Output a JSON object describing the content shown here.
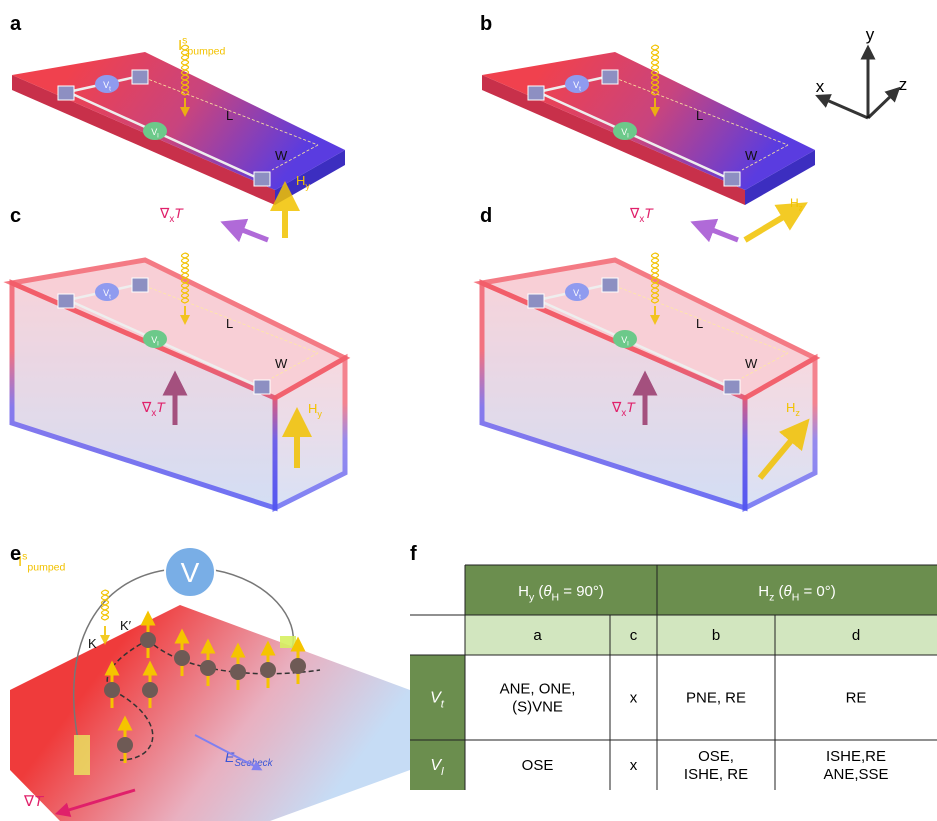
{
  "panel_labels": [
    "a",
    "b",
    "c",
    "d",
    "e",
    "f"
  ],
  "axes": [
    "x",
    "y",
    "z"
  ],
  "labels": {
    "pumped": [
      {
        "t": "I"
      },
      {
        "t": "s",
        "sup": true
      },
      {
        "t": "pumped",
        "sub": true
      }
    ],
    "L": [
      {
        "t": "L"
      }
    ],
    "W": [
      {
        "t": "W"
      }
    ],
    "Hy": [
      {
        "t": "H"
      },
      {
        "t": "y",
        "sub": true
      }
    ],
    "Hz": [
      {
        "t": "H"
      },
      {
        "t": "z",
        "sub": true
      }
    ],
    "gradx": [
      {
        "t": "∇"
      },
      {
        "t": "x",
        "sub": true
      },
      {
        "t": "T",
        "it": true
      }
    ],
    "Vt": [
      {
        "t": "V"
      },
      {
        "t": "t",
        "sub": true
      }
    ],
    "Vl": [
      {
        "t": "V"
      },
      {
        "t": "l",
        "sub": true
      }
    ],
    "K": [
      {
        "t": "K"
      }
    ],
    "Kp": [
      {
        "t": "K′"
      }
    ],
    "V": [
      {
        "t": "V"
      }
    ],
    "E": [
      {
        "t": "E",
        "it": true
      },
      {
        "t": "Seebeck",
        "sub": true,
        "it": true
      }
    ],
    "gradT": [
      {
        "t": "∇"
      },
      {
        "t": "T",
        "it": true
      }
    ]
  },
  "table": {
    "groups": [
      [
        {
          "t": "H"
        },
        {
          "t": "y",
          "sub": true
        },
        {
          "t": " ("
        },
        {
          "t": "θ",
          "it": true
        },
        {
          "t": "H",
          "sub": true
        },
        {
          "t": " = 90°)"
        }
      ],
      [
        {
          "t": "H"
        },
        {
          "t": "z",
          "sub": true
        },
        {
          "t": " ("
        },
        {
          "t": "θ",
          "it": true
        },
        {
          "t": "H",
          "sub": true
        },
        {
          "t": " = 0°)"
        }
      ]
    ],
    "columns": [
      "a",
      "c",
      "b",
      "d"
    ],
    "rows": [
      {
        "label": [
          {
            "t": "V",
            "it": true
          },
          {
            "t": "t",
            "sub": true,
            "it": true
          }
        ],
        "cells": [
          [
            "ANE, ONE,",
            "(S)VNE"
          ],
          [
            "x"
          ],
          [
            "PNE, RE"
          ],
          [
            "RE"
          ]
        ]
      },
      {
        "label": [
          {
            "t": "V",
            "it": true
          },
          {
            "t": "l",
            "sub": true,
            "it": true
          }
        ],
        "cells": [
          [
            "OSE"
          ],
          [
            "x"
          ],
          [
            "OSE,",
            "ISHE, RE"
          ],
          [
            "ISHE,RE",
            "ANE,SSE"
          ]
        ]
      }
    ]
  }
}
